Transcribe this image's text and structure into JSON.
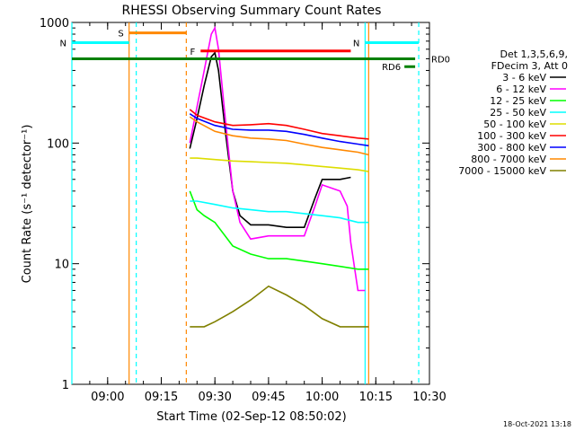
{
  "chart_data": {
    "type": "line",
    "title": "RHESSI Observing Summary Count Rates",
    "xlabel": "Start Time (02-Sep-12 08:50:02)",
    "ylabel": "Count Rate (s⁻¹ detector⁻¹)",
    "y_scale": "log",
    "ylim": [
      1,
      1000
    ],
    "xlim": [
      "08:50",
      "10:30"
    ],
    "x_ticks": [
      "09:00",
      "09:15",
      "09:30",
      "09:45",
      "10:00",
      "10:15",
      "10:30"
    ],
    "y_ticks": [
      "1",
      "10",
      "100",
      "1000"
    ],
    "legend_header": [
      "Det 1,3,5,6,9,",
      "FDecim 3, Att 0"
    ],
    "legend_position": "right",
    "timestamp": "18-Oct-2021 13:18",
    "series": [
      {
        "name": "3 - 6 keV",
        "color": "#000000",
        "x": [
          "09:23",
          "09:25",
          "09:27",
          "09:29",
          "09:30",
          "09:31",
          "09:33",
          "09:35",
          "09:37",
          "09:40",
          "09:45",
          "09:50",
          "09:55",
          "09:58",
          "10:00",
          "10:05",
          "10:08"
        ],
        "y": [
          90,
          160,
          300,
          520,
          560,
          400,
          120,
          40,
          25,
          21,
          21,
          20,
          20,
          35,
          50,
          50,
          52
        ]
      },
      {
        "name": "6 - 12 keV",
        "color": "#ff00ff",
        "x": [
          "09:23",
          "09:25",
          "09:27",
          "09:29",
          "09:30",
          "09:31",
          "09:33",
          "09:35",
          "09:37",
          "09:40",
          "09:45",
          "09:50",
          "09:55",
          "09:58",
          "10:00",
          "10:05",
          "10:07",
          "10:08",
          "10:10",
          "10:12"
        ],
        "y": [
          100,
          200,
          400,
          800,
          900,
          600,
          150,
          40,
          22,
          16,
          17,
          17,
          17,
          30,
          45,
          40,
          30,
          15,
          6,
          6
        ]
      },
      {
        "name": "12 - 25 keV",
        "color": "#00ff00",
        "x": [
          "09:23",
          "09:25",
          "09:27",
          "09:30",
          "09:35",
          "09:40",
          "09:45",
          "09:50",
          "09:55",
          "10:00",
          "10:05",
          "10:10",
          "10:13"
        ],
        "y": [
          40,
          28,
          25,
          22,
          14,
          12,
          11,
          11,
          10.5,
          10,
          9.5,
          9,
          9
        ]
      },
      {
        "name": "25 - 50 keV",
        "color": "#00ffff",
        "x": [
          "09:23",
          "09:25",
          "09:30",
          "09:35",
          "09:40",
          "09:45",
          "09:50",
          "09:55",
          "10:00",
          "10:05",
          "10:10",
          "10:13"
        ],
        "y": [
          33,
          33,
          31,
          29,
          28,
          27,
          27,
          26,
          25,
          24,
          22,
          22
        ]
      },
      {
        "name": "50 - 100 keV",
        "color": "#dddd00",
        "x": [
          "09:23",
          "09:25",
          "09:30",
          "09:35",
          "09:40",
          "09:45",
          "09:50",
          "09:55",
          "10:00",
          "10:05",
          "10:10",
          "10:13"
        ],
        "y": [
          75,
          75,
          73,
          71,
          70,
          69,
          68,
          66,
          64,
          62,
          60,
          58
        ]
      },
      {
        "name": "100 - 300 keV",
        "color": "#ff0000",
        "x": [
          "09:23",
          "09:25",
          "09:30",
          "09:35",
          "09:40",
          "09:45",
          "09:50",
          "09:55",
          "10:00",
          "10:05",
          "10:10",
          "10:13"
        ],
        "y": [
          190,
          170,
          150,
          140,
          142,
          145,
          140,
          130,
          120,
          115,
          110,
          108
        ]
      },
      {
        "name": "300 - 800 keV",
        "color": "#0000ff",
        "x": [
          "09:23",
          "09:25",
          "09:30",
          "09:35",
          "09:40",
          "09:45",
          "09:50",
          "09:55",
          "10:00",
          "10:05",
          "10:10",
          "10:13"
        ],
        "y": [
          175,
          160,
          140,
          130,
          128,
          128,
          125,
          118,
          110,
          103,
          98,
          95
        ]
      },
      {
        "name": "800 - 7000 keV",
        "color": "#ff8800",
        "x": [
          "09:23",
          "09:25",
          "09:30",
          "09:35",
          "09:40",
          "09:45",
          "09:50",
          "09:55",
          "10:00",
          "10:05",
          "10:10",
          "10:13"
        ],
        "y": [
          165,
          150,
          125,
          115,
          110,
          108,
          105,
          98,
          92,
          88,
          84,
          80
        ]
      },
      {
        "name": "7000 - 15000 keV",
        "color": "#808000",
        "x": [
          "09:23",
          "09:27",
          "09:30",
          "09:35",
          "09:40",
          "09:45",
          "09:50",
          "09:55",
          "10:00",
          "10:05",
          "10:10",
          "10:13"
        ],
        "y": [
          3,
          3,
          3.3,
          4,
          5,
          6.5,
          5.5,
          4.5,
          3.5,
          3,
          3,
          3
        ]
      }
    ],
    "flag_bars": [
      {
        "label": "S",
        "color": "#ff8800",
        "x": [
          "09:06",
          "09:22"
        ],
        "y": 820
      },
      {
        "label": "N",
        "color": "#00ffff",
        "x": [
          "08:50",
          "09:06"
        ],
        "y": 680
      },
      {
        "label": "N",
        "color": "#00ffff",
        "x": [
          "10:12",
          "10:27"
        ],
        "y": 680
      },
      {
        "label": "F",
        "color": "#ff0000",
        "x": [
          "09:26",
          "10:08"
        ],
        "y": 580
      },
      {
        "label": "RD0",
        "color": "#008000",
        "x": [
          "08:50",
          "10:26"
        ],
        "y": 500
      },
      {
        "label": "RD6",
        "color": "#008000",
        "x": [
          "10:23",
          "10:26"
        ],
        "y": 430
      }
    ],
    "vertical_markers": [
      {
        "color": "#ff8800",
        "style": "solid",
        "x": "09:06"
      },
      {
        "color": "#00ffff",
        "style": "dashed",
        "x": "09:08"
      },
      {
        "color": "#ff8800",
        "style": "dashed",
        "x": "09:22"
      },
      {
        "color": "#00ffff",
        "style": "solid",
        "x": "10:12"
      },
      {
        "color": "#ff8800",
        "style": "solid",
        "x": "10:13"
      },
      {
        "color": "#00ffff",
        "style": "dashed",
        "x": "10:27"
      },
      {
        "color": "#00ffff",
        "style": "solid",
        "x": "08:50"
      }
    ]
  }
}
